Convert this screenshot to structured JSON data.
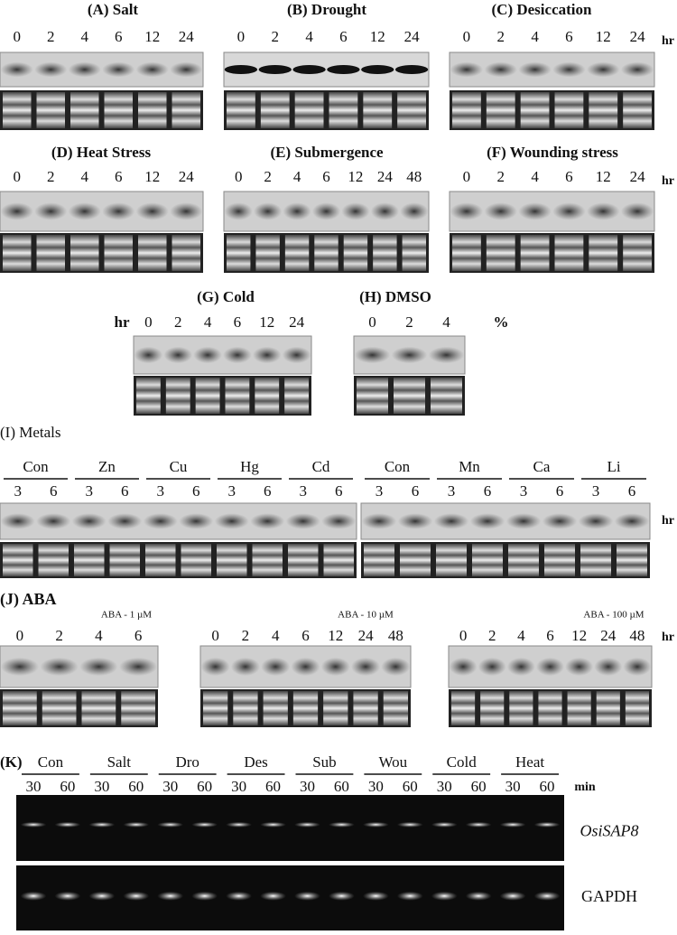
{
  "panels": [
    {
      "title": "(A) Salt",
      "lanes": [
        "0",
        "2",
        "4",
        "6",
        "12",
        "24"
      ]
    },
    {
      "title": "(B) Drought",
      "lanes": [
        "0",
        "2",
        "4",
        "6",
        "12",
        "24"
      ]
    },
    {
      "title": "(C) Desiccation",
      "lanes": [
        "0",
        "2",
        "4",
        "6",
        "12",
        "24"
      ],
      "unit": "hr"
    },
    {
      "title": "(D) Heat Stress",
      "lanes": [
        "0",
        "2",
        "4",
        "6",
        "12",
        "24"
      ]
    },
    {
      "title": "(E) Submergence",
      "lanes": [
        "0",
        "2",
        "4",
        "6",
        "12",
        "24",
        "48"
      ]
    },
    {
      "title": "(F) Wounding stress",
      "lanes": [
        "0",
        "2",
        "4",
        "6",
        "12",
        "24"
      ],
      "unit": "hr"
    },
    {
      "title": "(G) Cold",
      "lanes": [
        "0",
        "2",
        "4",
        "6",
        "12",
        "24"
      ],
      "unit": "hr"
    },
    {
      "title": "(H) DMSO",
      "lanes": [
        "0",
        "2",
        "4"
      ],
      "unit": "%"
    }
  ],
  "metals": {
    "title": "(I) Metals",
    "unit": "hr",
    "groups": [
      {
        "name": "Con",
        "lanes": [
          "3",
          "6"
        ]
      },
      {
        "name": "Zn",
        "lanes": [
          "3",
          "6"
        ]
      },
      {
        "name": "Cu",
        "lanes": [
          "3",
          "6"
        ]
      },
      {
        "name": "Hg",
        "lanes": [
          "3",
          "6"
        ]
      },
      {
        "name": "Cd",
        "lanes": [
          "3",
          "6"
        ]
      },
      {
        "name": "Con",
        "lanes": [
          "3",
          "6"
        ]
      },
      {
        "name": "Mn",
        "lanes": [
          "3",
          "6"
        ]
      },
      {
        "name": "Ca",
        "lanes": [
          "3",
          "6"
        ]
      },
      {
        "name": "Li",
        "lanes": [
          "3",
          "6"
        ]
      }
    ]
  },
  "aba": {
    "title": "(J) ABA",
    "unit": "hr",
    "subpanels": [
      {
        "label": "ABA - 1 µM",
        "lanes": [
          "0",
          "2",
          "4",
          "6"
        ]
      },
      {
        "label": "ABA - 10 µM",
        "lanes": [
          "0",
          "2",
          "4",
          "6",
          "12",
          "24",
          "48"
        ]
      },
      {
        "label": "ABA - 100 µM",
        "lanes": [
          "0",
          "2",
          "4",
          "6",
          "12",
          "24",
          "48"
        ]
      }
    ]
  },
  "pcr": {
    "title": "(K)",
    "unit": "min",
    "genes": [
      "OsiSAP8",
      "GAPDH"
    ],
    "groups": [
      {
        "name": "Con",
        "lanes": [
          "30",
          "60"
        ]
      },
      {
        "name": "Salt",
        "lanes": [
          "30",
          "60"
        ]
      },
      {
        "name": "Dro",
        "lanes": [
          "30",
          "60"
        ]
      },
      {
        "name": "Des",
        "lanes": [
          "30",
          "60"
        ]
      },
      {
        "name": "Sub",
        "lanes": [
          "30",
          "60"
        ]
      },
      {
        "name": "Wou",
        "lanes": [
          "30",
          "60"
        ]
      },
      {
        "name": "Cold",
        "lanes": [
          "30",
          "60"
        ]
      },
      {
        "name": "Heat",
        "lanes": [
          "30",
          "60"
        ]
      }
    ]
  }
}
